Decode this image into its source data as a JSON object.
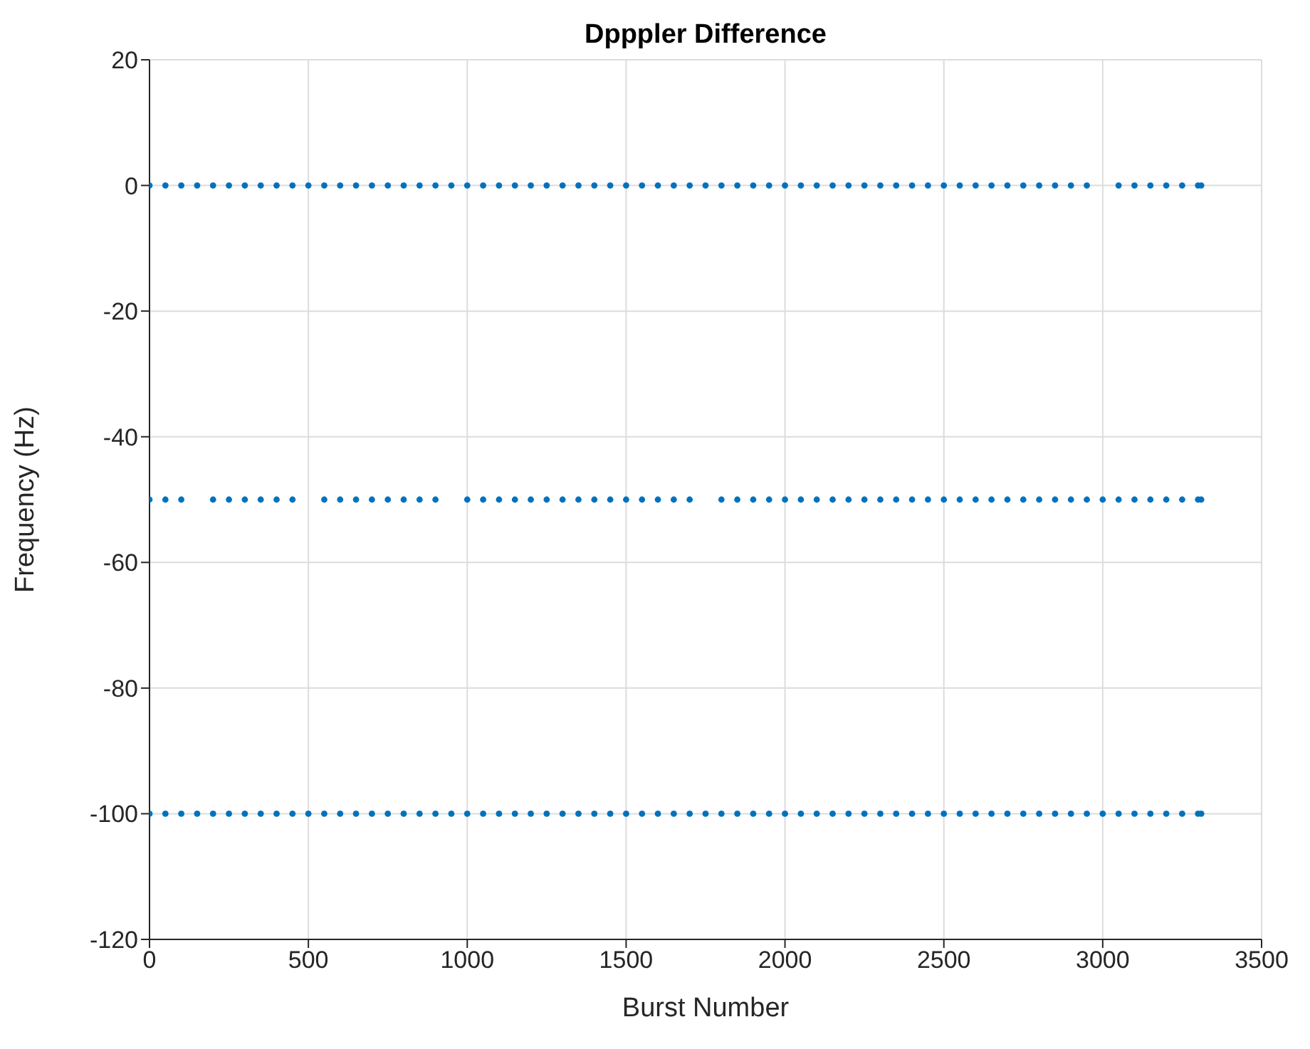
{
  "chart_data": {
    "type": "scatter",
    "title": "Dpppler Difference",
    "xlabel": "Burst Number",
    "ylabel": "Frequency (Hz)",
    "xlim": [
      0,
      3500
    ],
    "xticks": [
      0,
      500,
      1000,
      1500,
      2000,
      2500,
      3000,
      3500
    ],
    "ylim": [
      -120,
      20
    ],
    "yticks": [
      -120,
      -100,
      -80,
      -60,
      -40,
      -20,
      0,
      20
    ],
    "grid": true,
    "marker": "circle",
    "series": [
      {
        "color": "#0072bd",
        "x": [
          0,
          50,
          100,
          150,
          200,
          250,
          300,
          350,
          400,
          450,
          500,
          550,
          600,
          650,
          700,
          750,
          800,
          850,
          900,
          950,
          1000,
          1050,
          1100,
          1150,
          1200,
          1250,
          1300,
          1350,
          1400,
          1450,
          1500,
          1550,
          1600,
          1650,
          1700,
          1750,
          1800,
          1850,
          1900,
          1950,
          2000,
          2050,
          2100,
          2150,
          2200,
          2250,
          2300,
          2350,
          2400,
          2450,
          2500,
          2550,
          2600,
          2650,
          2700,
          2750,
          2800,
          2850,
          2900,
          2950,
          3050,
          3100,
          3150,
          3200,
          3250,
          3300,
          3310
        ],
        "values": [
          0,
          0,
          0,
          0,
          0,
          0,
          0,
          0,
          0,
          0,
          0,
          0,
          0,
          0,
          0,
          0,
          0,
          0,
          0,
          0,
          0,
          0,
          0,
          0,
          0,
          0,
          0,
          0,
          0,
          0,
          0,
          0,
          0,
          0,
          0,
          0,
          0,
          0,
          0,
          0,
          0,
          0,
          0,
          0,
          0,
          0,
          0,
          0,
          0,
          0,
          0,
          0,
          0,
          0,
          0,
          0,
          0,
          0,
          0,
          0,
          0,
          0,
          0,
          0,
          0,
          0,
          0
        ]
      },
      {
        "color": "#0072bd",
        "x": [
          0,
          50,
          100,
          200,
          250,
          300,
          350,
          400,
          450,
          550,
          600,
          650,
          700,
          750,
          800,
          850,
          900,
          1000,
          1050,
          1100,
          1150,
          1200,
          1250,
          1300,
          1350,
          1400,
          1450,
          1500,
          1550,
          1600,
          1650,
          1700,
          1800,
          1850,
          1900,
          1950,
          2000,
          2050,
          2100,
          2150,
          2200,
          2250,
          2300,
          2350,
          2400,
          2450,
          2500,
          2550,
          2600,
          2650,
          2700,
          2750,
          2800,
          2850,
          2900,
          2950,
          3000,
          3050,
          3100,
          3150,
          3200,
          3250,
          3300,
          3310
        ],
        "values": [
          -50,
          -50,
          -50,
          -50,
          -50,
          -50,
          -50,
          -50,
          -50,
          -50,
          -50,
          -50,
          -50,
          -50,
          -50,
          -50,
          -50,
          -50,
          -50,
          -50,
          -50,
          -50,
          -50,
          -50,
          -50,
          -50,
          -50,
          -50,
          -50,
          -50,
          -50,
          -50,
          -50,
          -50,
          -50,
          -50,
          -50,
          -50,
          -50,
          -50,
          -50,
          -50,
          -50,
          -50,
          -50,
          -50,
          -50,
          -50,
          -50,
          -50,
          -50,
          -50,
          -50,
          -50,
          -50,
          -50,
          -50,
          -50,
          -50,
          -50,
          -50,
          -50,
          -50,
          -50
        ]
      },
      {
        "color": "#0072bd",
        "x": [
          0,
          50,
          100,
          150,
          200,
          250,
          300,
          350,
          400,
          450,
          500,
          550,
          600,
          650,
          700,
          750,
          800,
          850,
          900,
          950,
          1000,
          1050,
          1100,
          1150,
          1200,
          1250,
          1300,
          1350,
          1400,
          1450,
          1500,
          1550,
          1600,
          1650,
          1700,
          1750,
          1800,
          1850,
          1900,
          1950,
          2000,
          2050,
          2100,
          2150,
          2200,
          2250,
          2300,
          2350,
          2400,
          2450,
          2500,
          2550,
          2600,
          2650,
          2700,
          2750,
          2800,
          2850,
          2900,
          2950,
          3000,
          3050,
          3100,
          3150,
          3200,
          3250,
          3300,
          3310
        ],
        "values": [
          -100,
          -100,
          -100,
          -100,
          -100,
          -100,
          -100,
          -100,
          -100,
          -100,
          -100,
          -100,
          -100,
          -100,
          -100,
          -100,
          -100,
          -100,
          -100,
          -100,
          -100,
          -100,
          -100,
          -100,
          -100,
          -100,
          -100,
          -100,
          -100,
          -100,
          -100,
          -100,
          -100,
          -100,
          -100,
          -100,
          -100,
          -100,
          -100,
          -100,
          -100,
          -100,
          -100,
          -100,
          -100,
          -100,
          -100,
          -100,
          -100,
          -100,
          -100,
          -100,
          -100,
          -100,
          -100,
          -100,
          -100,
          -100,
          -100,
          -100,
          -100,
          -100,
          -100,
          -100,
          -100,
          -100,
          -100,
          -100
        ]
      }
    ]
  }
}
